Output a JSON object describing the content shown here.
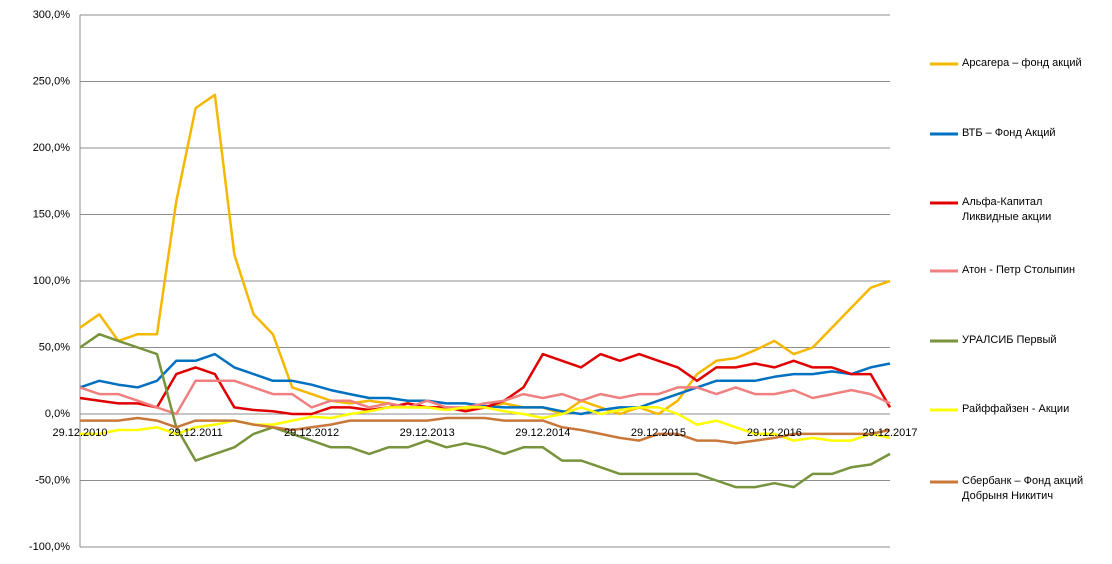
{
  "chart_data": {
    "type": "line",
    "x": [
      "29.12.2010",
      "28.02.2011",
      "29.04.2011",
      "29.06.2011",
      "29.08.2011",
      "29.10.2011",
      "29.12.2011",
      "28.02.2012",
      "29.04.2012",
      "29.06.2012",
      "29.08.2012",
      "29.10.2012",
      "29.12.2012",
      "28.02.2013",
      "29.04.2013",
      "29.06.2013",
      "29.08.2013",
      "29.10.2013",
      "29.12.2013",
      "28.02.2014",
      "29.04.2014",
      "29.06.2014",
      "29.08.2014",
      "29.10.2014",
      "29.12.2014",
      "28.02.2015",
      "29.04.2015",
      "29.06.2015",
      "29.08.2015",
      "29.10.2015",
      "29.12.2015",
      "28.02.2016",
      "29.04.2016",
      "29.06.2016",
      "29.08.2016",
      "29.10.2016",
      "29.12.2016",
      "28.02.2017",
      "29.04.2017",
      "29.06.2017",
      "29.08.2017",
      "29.10.2017",
      "29.12.2017"
    ],
    "xlim": [
      "29.12.2010",
      "29.12.2017"
    ],
    "xticks": [
      "29.12.2010",
      "29.12.2011",
      "29.12.2012",
      "29.12.2013",
      "29.12.2014",
      "29.12.2015",
      "29.12.2016",
      "29.12.2017"
    ],
    "ylim": [
      -100,
      300
    ],
    "yticks": [
      {
        "value": -100,
        "label": "-100,0%"
      },
      {
        "value": -50,
        "label": "-50,0%"
      },
      {
        "value": 0,
        "label": "0,0%"
      },
      {
        "value": 50,
        "label": "50,0%"
      },
      {
        "value": 100,
        "label": "100,0%"
      },
      {
        "value": 150,
        "label": "150,0%"
      },
      {
        "value": 200,
        "label": "200,0%"
      },
      {
        "value": 250,
        "label": "250,0%"
      },
      {
        "value": 300,
        "label": "300,0%"
      }
    ],
    "grid": true,
    "series": [
      {
        "name": "Арсагера – фонд акций",
        "color": "#f5b800",
        "values": [
          65,
          75,
          55,
          60,
          60,
          160,
          230,
          240,
          120,
          75,
          60,
          20,
          15,
          10,
          8,
          10,
          8,
          5,
          5,
          5,
          3,
          5,
          8,
          5,
          5,
          0,
          10,
          5,
          0,
          5,
          0,
          10,
          30,
          40,
          42,
          48,
          55,
          45,
          50,
          65,
          80,
          95,
          100
        ]
      },
      {
        "name": "ВТБ – Фонд Акций",
        "color": "#0070c0",
        "values": [
          20,
          25,
          22,
          20,
          25,
          40,
          40,
          45,
          35,
          30,
          25,
          25,
          22,
          18,
          15,
          12,
          12,
          10,
          10,
          8,
          8,
          6,
          5,
          5,
          5,
          2,
          0,
          3,
          5,
          5,
          10,
          15,
          20,
          25,
          25,
          25,
          28,
          30,
          30,
          32,
          30,
          35,
          38
        ]
      },
      {
        "name": "Альфа-Капитал\nЛиквидные акции",
        "color": "#e00000",
        "values": [
          12,
          10,
          8,
          8,
          5,
          30,
          35,
          30,
          5,
          3,
          2,
          0,
          0,
          5,
          5,
          3,
          5,
          8,
          5,
          5,
          2,
          5,
          10,
          20,
          45,
          40,
          35,
          45,
          40,
          45,
          40,
          35,
          25,
          35,
          35,
          38,
          35,
          40,
          35,
          35,
          30,
          30,
          5
        ]
      },
      {
        "name": "Атон - Петр Столыпин",
        "color": "#f08080",
        "values": [
          20,
          15,
          15,
          10,
          5,
          0,
          25,
          25,
          25,
          20,
          15,
          15,
          5,
          10,
          10,
          5,
          8,
          5,
          10,
          5,
          5,
          8,
          10,
          15,
          12,
          15,
          10,
          15,
          12,
          15,
          15,
          20,
          20,
          15,
          20,
          15,
          15,
          18,
          12,
          15,
          18,
          15,
          8
        ]
      },
      {
        "name": "УРАЛСИБ Первый",
        "color": "#77933c",
        "values": [
          50,
          60,
          55,
          50,
          45,
          -10,
          -35,
          -30,
          -25,
          -15,
          -10,
          -15,
          -20,
          -25,
          -25,
          -30,
          -25,
          -25,
          -20,
          -25,
          -22,
          -25,
          -30,
          -25,
          -25,
          -35,
          -35,
          -40,
          -45,
          -45,
          -45,
          -45,
          -45,
          -50,
          -55,
          -55,
          -52,
          -55,
          -45,
          -45,
          -40,
          -38,
          -30
        ]
      },
      {
        "name": "Райффайзен - Акции",
        "color": "#ffff00",
        "values": [
          -15,
          -15,
          -12,
          -12,
          -10,
          -15,
          -10,
          -8,
          -5,
          -8,
          -8,
          -5,
          -2,
          -3,
          0,
          2,
          5,
          5,
          5,
          3,
          5,
          5,
          2,
          0,
          -3,
          0,
          5,
          0,
          3,
          5,
          5,
          0,
          -8,
          -5,
          -10,
          -15,
          -15,
          -20,
          -18,
          -20,
          -20,
          -15,
          -18
        ]
      },
      {
        "name": "Сбербанк – Фонд акций\nДобрыня Никитич",
        "color": "#c8783a",
        "values": [
          -5,
          -5,
          -5,
          -3,
          -5,
          -10,
          -5,
          -5,
          -5,
          -8,
          -10,
          -12,
          -10,
          -8,
          -5,
          -5,
          -5,
          -5,
          -5,
          -3,
          -3,
          -3,
          -5,
          -5,
          -5,
          -10,
          -12,
          -15,
          -18,
          -20,
          -15,
          -15,
          -20,
          -20,
          -22,
          -20,
          -18,
          -15,
          -15,
          -15,
          -15,
          -15,
          -12
        ]
      }
    ]
  }
}
